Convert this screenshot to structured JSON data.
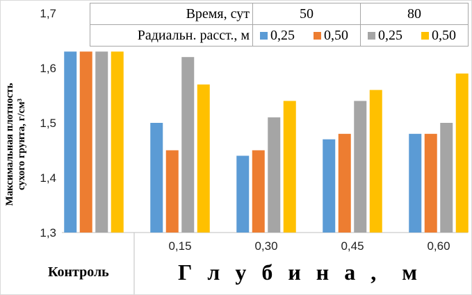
{
  "chart_data": {
    "type": "bar",
    "categories": [
      "Контроль",
      "0,15",
      "0,30",
      "0,45",
      "0,60"
    ],
    "series": [
      {
        "name": "50 сут, 0,25",
        "color": "#5b9bd5",
        "values": [
          1.63,
          1.5,
          1.44,
          1.47,
          1.48
        ]
      },
      {
        "name": "50 сут, 0,50",
        "color": "#ed7d31",
        "values": [
          1.63,
          1.45,
          1.45,
          1.48,
          1.48
        ]
      },
      {
        "name": "80 сут, 0,25",
        "color": "#a5a5a5",
        "values": [
          1.63,
          1.62,
          1.51,
          1.54,
          1.5
        ]
      },
      {
        "name": "80 сут, 0,50",
        "color": "#ffc000",
        "values": [
          1.63,
          1.57,
          1.54,
          1.56,
          1.59
        ]
      }
    ],
    "ylim": [
      1.3,
      1.7
    ],
    "yticks": [
      "1,3",
      "1,4",
      "1,5",
      "1,6",
      "1,7"
    ],
    "ylabel": [
      "Максимальная плотность",
      "сухого грунта, г/см³"
    ],
    "xlabel": "Г л у б и н а ,  м",
    "control_label": "Контроль",
    "grid": false,
    "legend": {
      "placement": "top",
      "row1_label": "Время, сут",
      "times": [
        "50",
        "80"
      ],
      "row2_label": "Радиальн. расст., м",
      "distances": [
        "0,25",
        "0,50",
        "0,25",
        "0,50"
      ]
    }
  }
}
